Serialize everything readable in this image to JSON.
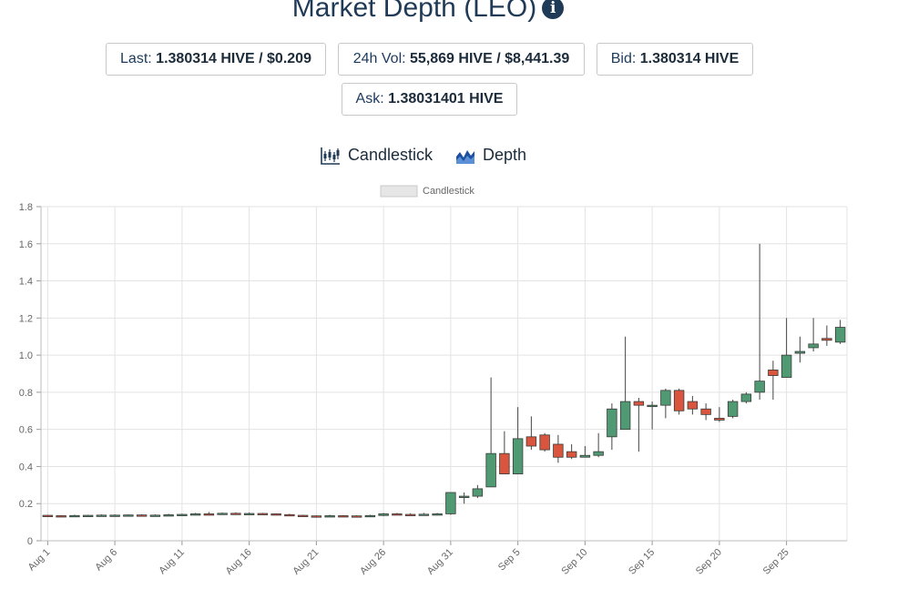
{
  "page": {
    "title": "Market Depth (LEO)",
    "info_icon": "info-icon"
  },
  "stats": {
    "last_label": "Last:",
    "last_value": "1.380314 HIVE / $0.209",
    "vol_label": "24h Vol:",
    "vol_value": "55,869 HIVE / $8,441.39",
    "bid_label": "Bid:",
    "bid_value": "1.380314 HIVE",
    "ask_label": "Ask:",
    "ask_value": "1.38031401 HIVE"
  },
  "tabs": [
    {
      "label": "Candlestick",
      "icon": "candlestick-icon"
    },
    {
      "label": "Depth",
      "icon": "depth-chart-icon"
    }
  ],
  "colors": {
    "up": "#4f9a73",
    "down": "#d9553d",
    "text": "#1b3a5c",
    "grid": "#e3e3e3"
  },
  "chart_data": {
    "type": "candlestick",
    "legend": {
      "label": "Candlestick",
      "position": "top"
    },
    "grid": true,
    "ylim": [
      0,
      1.8
    ],
    "yticks": [
      "0",
      "0.2",
      "0.4",
      "0.6",
      "0.8",
      "1.0",
      "1.2",
      "1.4",
      "1.6",
      "1.8"
    ],
    "xtick_labels": [
      "Aug 1",
      "Aug 6",
      "Aug 11",
      "Aug 16",
      "Aug 21",
      "Aug 26",
      "Aug 31",
      "Sep 5",
      "Sep 10",
      "Sep 15",
      "Sep 20",
      "Sep 25"
    ],
    "x": [
      "Aug 1",
      "Aug 2",
      "Aug 3",
      "Aug 4",
      "Aug 5",
      "Aug 6",
      "Aug 7",
      "Aug 8",
      "Aug 9",
      "Aug 10",
      "Aug 11",
      "Aug 12",
      "Aug 13",
      "Aug 14",
      "Aug 15",
      "Aug 16",
      "Aug 17",
      "Aug 18",
      "Aug 19",
      "Aug 20",
      "Aug 21",
      "Aug 22",
      "Aug 23",
      "Aug 24",
      "Aug 25",
      "Aug 26",
      "Aug 27",
      "Aug 28",
      "Aug 29",
      "Aug 30",
      "Aug 31",
      "Sep 1",
      "Sep 2",
      "Sep 3",
      "Sep 4",
      "Sep 5",
      "Sep 6",
      "Sep 7",
      "Sep 8",
      "Sep 9",
      "Sep 10",
      "Sep 11",
      "Sep 12",
      "Sep 13",
      "Sep 14",
      "Sep 15",
      "Sep 16",
      "Sep 17",
      "Sep 18",
      "Sep 19",
      "Sep 20",
      "Sep 21",
      "Sep 22",
      "Sep 23",
      "Sep 24",
      "Sep 25",
      "Sep 26",
      "Sep 27",
      "Sep 28",
      "Sep 29"
    ],
    "open": [
      0.137,
      0.135,
      0.133,
      0.136,
      0.137,
      0.138,
      0.138,
      0.139,
      0.138,
      0.138,
      0.14,
      0.142,
      0.145,
      0.144,
      0.148,
      0.146,
      0.147,
      0.145,
      0.141,
      0.137,
      0.134,
      0.133,
      0.135,
      0.134,
      0.131,
      0.136,
      0.145,
      0.142,
      0.138,
      0.143,
      0.145,
      0.235,
      0.24,
      0.29,
      0.47,
      0.36,
      0.56,
      0.57,
      0.52,
      0.48,
      0.45,
      0.46,
      0.56,
      0.6,
      0.75,
      0.73,
      0.73,
      0.81,
      0.75,
      0.71,
      0.66,
      0.67,
      0.75,
      0.8,
      0.92,
      0.88,
      1.01,
      1.04,
      1.09,
      1.07
    ],
    "close": [
      0.135,
      0.133,
      0.136,
      0.137,
      0.138,
      0.138,
      0.139,
      0.138,
      0.138,
      0.14,
      0.142,
      0.145,
      0.144,
      0.148,
      0.146,
      0.147,
      0.145,
      0.141,
      0.137,
      0.134,
      0.131,
      0.135,
      0.133,
      0.131,
      0.136,
      0.145,
      0.142,
      0.138,
      0.143,
      0.145,
      0.26,
      0.24,
      0.28,
      0.47,
      0.36,
      0.55,
      0.51,
      0.49,
      0.45,
      0.45,
      0.46,
      0.48,
      0.71,
      0.75,
      0.73,
      0.73,
      0.81,
      0.7,
      0.71,
      0.68,
      0.65,
      0.75,
      0.79,
      0.86,
      0.89,
      1.0,
      1.02,
      1.06,
      1.08,
      1.15
    ],
    "high": [
      0.14,
      0.138,
      0.14,
      0.14,
      0.142,
      0.142,
      0.142,
      0.143,
      0.142,
      0.145,
      0.146,
      0.15,
      0.155,
      0.152,
      0.153,
      0.152,
      0.15,
      0.148,
      0.145,
      0.14,
      0.137,
      0.14,
      0.138,
      0.137,
      0.14,
      0.15,
      0.15,
      0.148,
      0.15,
      0.15,
      0.26,
      0.26,
      0.3,
      0.88,
      0.59,
      0.72,
      0.67,
      0.58,
      0.57,
      0.52,
      0.51,
      0.58,
      0.74,
      1.1,
      0.77,
      0.75,
      0.82,
      0.82,
      0.78,
      0.74,
      0.72,
      0.76,
      0.8,
      1.6,
      0.97,
      1.2,
      1.1,
      1.2,
      1.16,
      1.19
    ],
    "low": [
      0.13,
      0.13,
      0.13,
      0.132,
      0.134,
      0.134,
      0.135,
      0.135,
      0.134,
      0.135,
      0.137,
      0.138,
      0.14,
      0.14,
      0.142,
      0.142,
      0.14,
      0.138,
      0.133,
      0.13,
      0.128,
      0.13,
      0.128,
      0.126,
      0.128,
      0.133,
      0.138,
      0.135,
      0.135,
      0.14,
      0.14,
      0.2,
      0.23,
      0.29,
      0.36,
      0.36,
      0.49,
      0.48,
      0.42,
      0.44,
      0.45,
      0.45,
      0.49,
      0.6,
      0.48,
      0.6,
      0.66,
      0.68,
      0.68,
      0.65,
      0.64,
      0.66,
      0.74,
      0.76,
      0.76,
      0.88,
      0.96,
      1.02,
      1.05,
      1.06
    ]
  }
}
